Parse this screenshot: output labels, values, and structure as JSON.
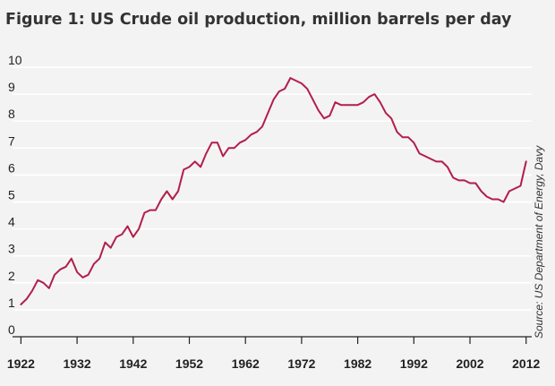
{
  "colors": {
    "background": "#f3f3f3",
    "series": "#b21e4b",
    "grid": "#ffffff"
  },
  "chart_data": {
    "type": "line",
    "title": "Figure 1: US Crude oil production, million barrels per day",
    "source": "Source: US Department of Energy, Davy",
    "xlabel": "",
    "ylabel": "",
    "xlim": [
      1920.5,
      2013
    ],
    "ylim": [
      0,
      10.5
    ],
    "x_ticks": [
      1922,
      1932,
      1942,
      1952,
      1962,
      1972,
      1982,
      1992,
      2002,
      2012
    ],
    "y_ticks": [
      0,
      1,
      2,
      3,
      4,
      5,
      6,
      7,
      8,
      9,
      10
    ],
    "grid": true,
    "series": [
      {
        "x": [
          1922,
          1923,
          1924,
          1925,
          1926,
          1927,
          1928,
          1929,
          1930,
          1931,
          1932,
          1933,
          1934,
          1935,
          1936,
          1937,
          1938,
          1939,
          1940,
          1941,
          1942,
          1943,
          1944,
          1945,
          1946,
          1947,
          1948,
          1949,
          1950,
          1951,
          1952,
          1953,
          1954,
          1955,
          1956,
          1957,
          1958,
          1959,
          1960,
          1961,
          1962,
          1963,
          1964,
          1965,
          1966,
          1967,
          1968,
          1969,
          1970,
          1971,
          1972,
          1973,
          1974,
          1975,
          1976,
          1977,
          1978,
          1979,
          1980,
          1981,
          1982,
          1983,
          1984,
          1985,
          1986,
          1987,
          1988,
          1989,
          1990,
          1991,
          1992,
          1993,
          1994,
          1995,
          1996,
          1997,
          1998,
          1999,
          2000,
          2001,
          2002,
          2003,
          2004,
          2005,
          2006,
          2007,
          2008,
          2009,
          2010,
          2011,
          2012
        ],
        "values": [
          1.2,
          1.4,
          1.7,
          2.1,
          2.0,
          1.8,
          2.3,
          2.5,
          2.6,
          2.9,
          2.4,
          2.2,
          2.3,
          2.7,
          2.9,
          3.5,
          3.3,
          3.7,
          3.8,
          4.1,
          3.7,
          4.0,
          4.6,
          4.7,
          4.7,
          5.1,
          5.4,
          5.1,
          5.4,
          6.2,
          6.3,
          6.5,
          6.3,
          6.8,
          7.2,
          7.2,
          6.7,
          7.0,
          7.0,
          7.2,
          7.3,
          7.5,
          7.6,
          7.8,
          8.3,
          8.8,
          9.1,
          9.2,
          9.6,
          9.5,
          9.4,
          9.2,
          8.8,
          8.4,
          8.1,
          8.2,
          8.7,
          8.6,
          8.6,
          8.6,
          8.6,
          8.7,
          8.9,
          9.0,
          8.7,
          8.3,
          8.1,
          7.6,
          7.4,
          7.4,
          7.2,
          6.8,
          6.7,
          6.6,
          6.5,
          6.5,
          6.3,
          5.9,
          5.8,
          5.8,
          5.7,
          5.7,
          5.4,
          5.2,
          5.1,
          5.1,
          5.0,
          5.4,
          5.5,
          5.6,
          6.5
        ]
      }
    ]
  }
}
